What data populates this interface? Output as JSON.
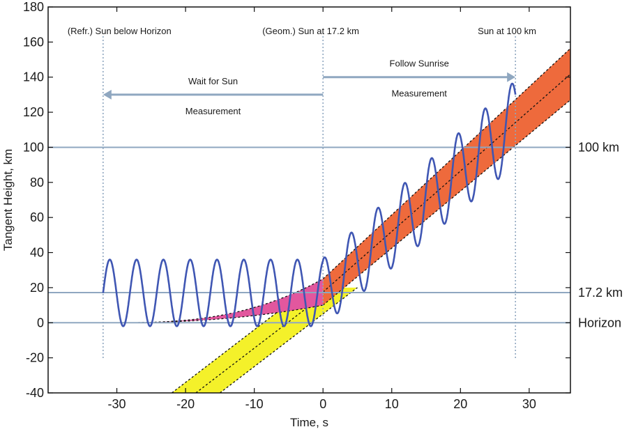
{
  "chart_data": {
    "type": "line",
    "xlabel": "Time, s",
    "ylabel": "Tangent Height, km",
    "xlim": [
      -40,
      36
    ],
    "ylim": [
      -40,
      180
    ],
    "xticks": [
      -30,
      -20,
      -10,
      0,
      10,
      20,
      30
    ],
    "yticks": [
      -40,
      -20,
      0,
      20,
      40,
      60,
      80,
      100,
      120,
      140,
      160,
      180
    ],
    "grid": false,
    "horizontal_lines": [
      {
        "y": 100,
        "label": "100 km"
      },
      {
        "y": 17.2,
        "label": "17.2 km"
      },
      {
        "y": 0,
        "label": "Horizon"
      }
    ],
    "vertical_lines": [
      {
        "x": -32,
        "label": "(Refr.) Sun below Horizon"
      },
      {
        "x": 0,
        "label": "(Geom.) Sun at 17.2 km"
      },
      {
        "x": 28,
        "label": "Sun at 100 km"
      }
    ],
    "arrows": [
      {
        "from": 0,
        "to": -32,
        "y": 130,
        "label_line1": "Wait for Sun",
        "label_line2": "Measurement"
      },
      {
        "from": 0,
        "to": 28,
        "y": 140,
        "label_line1": "Follow Sunrise",
        "label_line2": "Measurement"
      }
    ],
    "bands": [
      {
        "name": "geometric-sun-band",
        "color": "#f4f12a",
        "lower": {
          "x": [
            -15,
            5
          ],
          "y": [
            -40,
            20
          ]
        },
        "upper": {
          "x": [
            -22,
            -2
          ],
          "y": [
            -40,
            20
          ]
        }
      },
      {
        "name": "refracted-sun-band",
        "color": "#e2579e",
        "x_start": -30,
        "x_end": 0,
        "start_y": 0,
        "end_lower_y": 10,
        "end_upper_y": 25
      },
      {
        "name": "sunrise-band",
        "color": "#ee6a3c",
        "x_start": 0,
        "x_end": 36,
        "lower_start_y": 10,
        "upper_start_y": 25,
        "lower_slope": 3.25,
        "upper_slope": 3.65
      }
    ],
    "series": [
      {
        "type": "oscillation",
        "color": "#3f56b3",
        "x_start": -32,
        "x_end": 28,
        "period_s": 3.9,
        "flat_center_km": 17,
        "flat_amplitude_km": 19,
        "rising_start_s": 0,
        "rising_center_slope_km_per_s": 3.45,
        "rising_center_start_km": 17.5,
        "rising_amplitude_start_km": 19,
        "rising_amplitude_slope_km_per_s": 0.18
      }
    ]
  }
}
